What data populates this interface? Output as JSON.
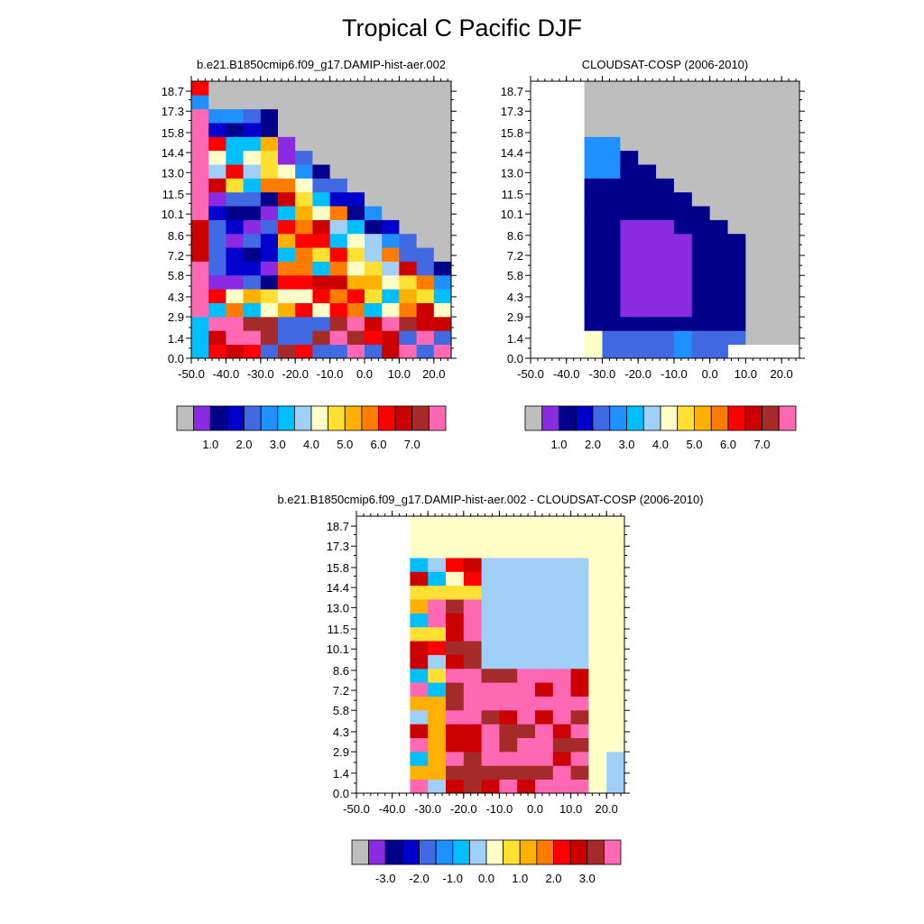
{
  "figure": {
    "title": "Tropical C Pacific DJF"
  },
  "palette": [
    "#bebebe",
    "#8a2be2",
    "#00008b",
    "#0000cd",
    "#4169e1",
    "#1e90ff",
    "#00bfff",
    "#a0cff8",
    "#ffffc8",
    "#ffe033",
    "#ffb000",
    "#ff7c00",
    "#ff0000",
    "#cd0000",
    "#a52a2a",
    "#ff69b4"
  ],
  "chart_data": [
    {
      "type": "heatmap",
      "title": "b.e21.B1850cmip6.f09_g17.DAMIP-hist-aer.002",
      "xticks": [
        "-50.0",
        "-40.0",
        "-30.0",
        "-20.0",
        "-10.0",
        "0.0",
        "10.0",
        "20.0"
      ],
      "yticks": [
        "0.0",
        "1.4",
        "2.9",
        "4.3",
        "5.8",
        "7.2",
        "8.6",
        "10.1",
        "11.5",
        "13.0",
        "14.4",
        "15.8",
        "17.3",
        "18.7"
      ],
      "xlim": [
        -50,
        25
      ],
      "ylim": [
        0,
        19.4
      ],
      "colorbar_labels": [
        "1.0",
        "2.0",
        "3.0",
        "4.0",
        "5.0",
        "6.0",
        "7.0"
      ],
      "cb_label_start": 1,
      "field": "model"
    },
    {
      "type": "heatmap",
      "title": "CLOUDSAT-COSP (2006-2010)",
      "xticks": [
        "-50.0",
        "-40.0",
        "-30.0",
        "-20.0",
        "-10.0",
        "0.0",
        "10.0",
        "20.0"
      ],
      "yticks": [
        "0.0",
        "1.4",
        "2.9",
        "4.3",
        "5.8",
        "7.2",
        "8.6",
        "10.1",
        "11.5",
        "13.0",
        "14.4",
        "15.8",
        "17.3",
        "18.7"
      ],
      "xlim": [
        -50,
        25
      ],
      "ylim": [
        0,
        19.4
      ],
      "colorbar_labels": [
        "1.0",
        "2.0",
        "3.0",
        "4.0",
        "5.0",
        "6.0",
        "7.0"
      ],
      "cb_label_start": 1,
      "field": "obs"
    },
    {
      "type": "heatmap",
      "title": "b.e21.B1850cmip6.f09_g17.DAMIP-hist-aer.002 - CLOUDSAT-COSP (2006-2010)",
      "xticks": [
        "-50.0",
        "-40.0",
        "-30.0",
        "-20.0",
        "-10.0",
        "0.0",
        "10.0",
        "20.0"
      ],
      "yticks": [
        "0.0",
        "1.4",
        "2.9",
        "4.3",
        "5.8",
        "7.2",
        "8.6",
        "10.1",
        "11.5",
        "13.0",
        "14.4",
        "15.8",
        "17.3",
        "18.7"
      ],
      "xlim": [
        -50,
        25
      ],
      "ylim": [
        0,
        19.4
      ],
      "colorbar_labels": [
        "-3.0",
        "-2.0",
        "-1.0",
        "0.0",
        "1.0",
        "2.0",
        "3.0"
      ],
      "cb_label_start": 1,
      "field": "diff"
    }
  ]
}
